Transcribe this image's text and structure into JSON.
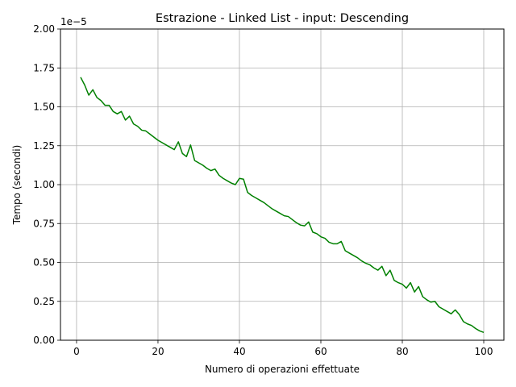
{
  "chart_data": {
    "type": "line",
    "title": "Estrazione - Linked List - input: Descending",
    "xlabel": "Numero di operazioni effettuate",
    "ylabel": "Tempo (secondi)",
    "y_scale_label": "1e−5",
    "y_scale_factor": 1e-05,
    "xlim": [
      -3.95,
      104.95
    ],
    "ylim": [
      0,
      2.0
    ],
    "x_ticks": [
      0,
      20,
      40,
      60,
      80,
      100
    ],
    "x_tick_labels": [
      "0",
      "20",
      "40",
      "60",
      "80",
      "100"
    ],
    "y_ticks": [
      0,
      0.25,
      0.5,
      0.75,
      1.0,
      1.25,
      1.5,
      1.75,
      2.0
    ],
    "y_tick_labels": [
      "0.00",
      "0.25",
      "0.50",
      "0.75",
      "1.00",
      "1.25",
      "1.50",
      "1.75",
      "2.00"
    ],
    "grid": true,
    "line_color": "#008000",
    "series": [
      {
        "x": [
          1,
          2,
          3,
          4,
          5,
          6,
          7,
          8,
          9,
          10,
          11,
          12,
          13,
          14,
          15,
          16,
          17,
          18,
          19,
          20,
          21,
          22,
          23,
          24,
          25,
          26,
          27,
          28,
          29,
          30,
          31,
          32,
          33,
          34,
          35,
          36,
          37,
          38,
          39,
          40,
          41,
          42,
          43,
          44,
          45,
          46,
          47,
          48,
          49,
          50,
          51,
          52,
          53,
          54,
          55,
          56,
          57,
          58,
          59,
          60,
          61,
          62,
          63,
          64,
          65,
          66,
          67,
          68,
          69,
          70,
          71,
          72,
          73,
          74,
          75,
          76,
          77,
          78,
          79,
          80,
          81,
          82,
          83,
          84,
          85,
          86,
          87,
          88,
          89,
          90,
          91,
          92,
          93,
          94,
          95,
          96,
          97,
          98,
          99,
          100
        ],
        "values": [
          1.69,
          1.64,
          1.575,
          1.61,
          1.56,
          1.54,
          1.51,
          1.51,
          1.47,
          1.455,
          1.47,
          1.415,
          1.44,
          1.39,
          1.375,
          1.35,
          1.345,
          1.325,
          1.305,
          1.285,
          1.27,
          1.255,
          1.24,
          1.225,
          1.275,
          1.2,
          1.18,
          1.255,
          1.155,
          1.14,
          1.125,
          1.105,
          1.09,
          1.1,
          1.06,
          1.04,
          1.025,
          1.01,
          1.0,
          1.04,
          1.035,
          0.95,
          0.93,
          0.915,
          0.9,
          0.885,
          0.865,
          0.845,
          0.83,
          0.815,
          0.8,
          0.795,
          0.775,
          0.755,
          0.74,
          0.735,
          0.76,
          0.695,
          0.685,
          0.665,
          0.655,
          0.63,
          0.62,
          0.62,
          0.635,
          0.575,
          0.56,
          0.545,
          0.53,
          0.51,
          0.495,
          0.485,
          0.465,
          0.45,
          0.475,
          0.415,
          0.45,
          0.385,
          0.37,
          0.36,
          0.335,
          0.37,
          0.31,
          0.345,
          0.28,
          0.26,
          0.245,
          0.25,
          0.215,
          0.2,
          0.185,
          0.17,
          0.195,
          0.165,
          0.12,
          0.105,
          0.095,
          0.075,
          0.06,
          0.05
        ]
      }
    ]
  }
}
